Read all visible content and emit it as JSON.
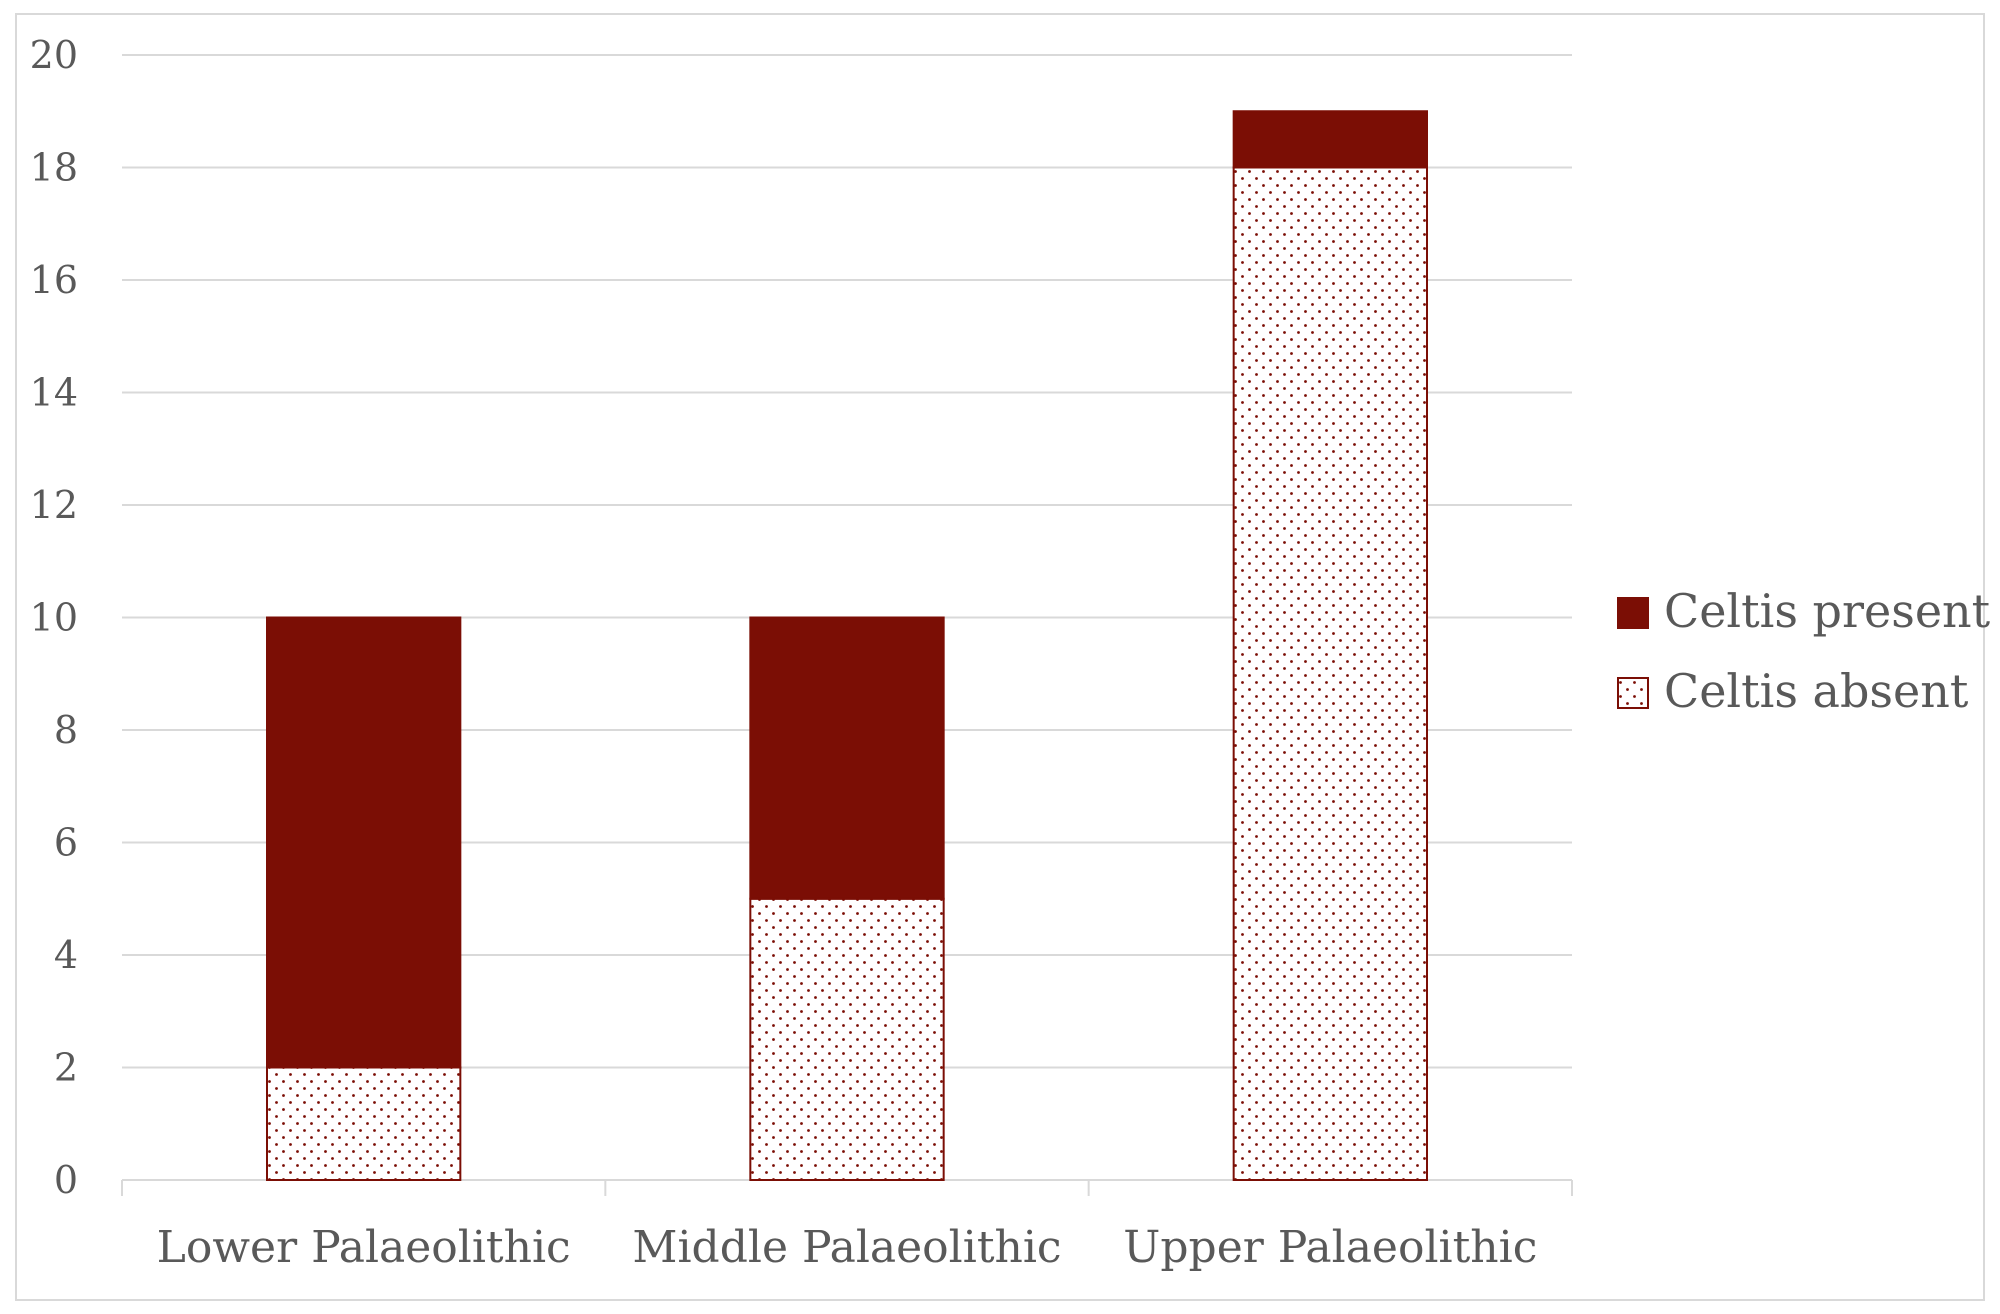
{
  "chart_data": {
    "type": "bar",
    "stacked": true,
    "title": "",
    "xlabel": "",
    "ylabel": "",
    "ylim": [
      0,
      20
    ],
    "yticks": [
      0,
      2,
      4,
      6,
      8,
      10,
      12,
      14,
      16,
      18,
      20
    ],
    "grid": true,
    "legend_position": "right",
    "categories": [
      "Lower Palaeolithic",
      "Middle Palaeolithic",
      "Upper Palaeolithic"
    ],
    "series": [
      {
        "name": "Celtis absent",
        "values": [
          2,
          5,
          18
        ],
        "color": "#7B0E05",
        "pattern": "dotted"
      },
      {
        "name": "Celtis present",
        "values": [
          8,
          5,
          1
        ],
        "color": "#7B0E05",
        "pattern": "solid"
      }
    ],
    "legend": [
      {
        "name": "Celtis present",
        "pattern": "solid"
      },
      {
        "name": "Celtis absent",
        "pattern": "dotted"
      }
    ]
  },
  "colors": {
    "bar": "#7B0E05",
    "grid": "#d9d9d9",
    "text": "#595959",
    "border": "#d9d9d9"
  }
}
